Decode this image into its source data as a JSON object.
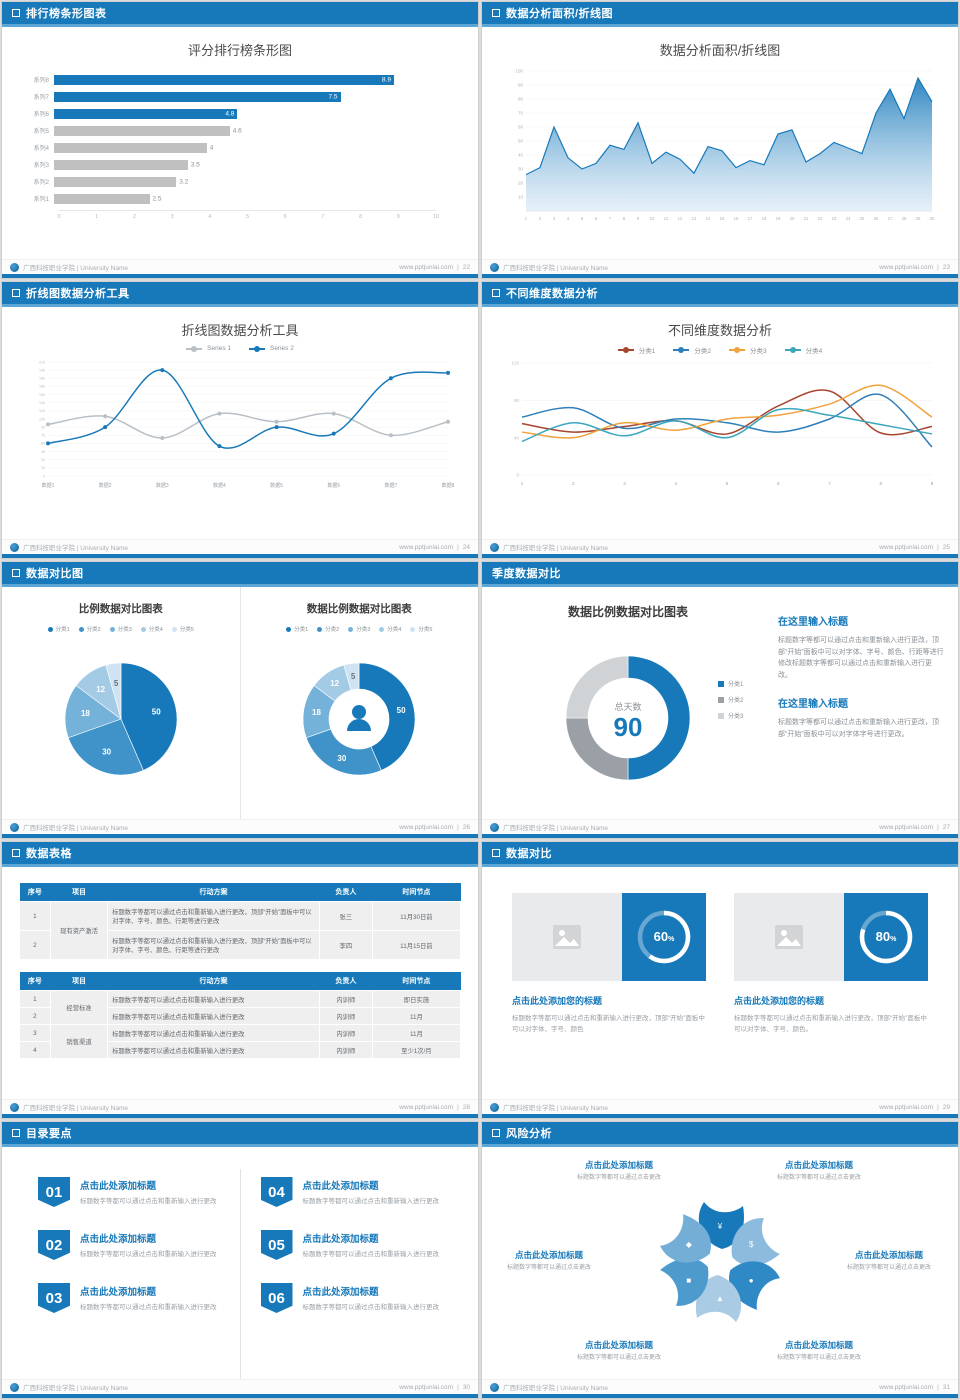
{
  "accent": "#1779ba",
  "footer": {
    "brand": "广西科技职业学院 | University Name",
    "site": "www.pptjunlai.com",
    "separator": "|"
  },
  "slides": {
    "s22": {
      "header": "排行榜条形图表",
      "page": "22",
      "title": "评分排行榜条形图",
      "chart": {
        "type": "bar",
        "orientation": "horizontal",
        "categories": [
          "系列8",
          "系列7",
          "系列6",
          "系列5",
          "系列4",
          "系列3",
          "系列2",
          "系列1"
        ],
        "values": [
          8.9,
          7.5,
          4.8,
          4.6,
          4,
          3.5,
          3.2,
          2.5
        ],
        "bar_colors": [
          "#1779ba",
          "#1779ba",
          "#1779ba",
          "#c0c0c0",
          "#c0c0c0",
          "#c0c0c0",
          "#c0c0c0",
          "#c0c0c0"
        ],
        "xlim": [
          0,
          10
        ],
        "xticks": [
          0,
          1,
          2,
          3,
          4,
          5,
          6,
          7,
          8,
          9,
          10
        ]
      }
    },
    "s23": {
      "header": "数据分析面积/折线图",
      "page": "23",
      "title": "数据分析面积/折线图",
      "chart": {
        "type": "area",
        "x": [
          1,
          2,
          3,
          4,
          5,
          6,
          7,
          8,
          9,
          10,
          11,
          12,
          13,
          14,
          15,
          16,
          17,
          18,
          19,
          20,
          21,
          22,
          23,
          24,
          25,
          26,
          27,
          28,
          29,
          30
        ],
        "values": [
          26,
          31,
          60,
          38,
          30,
          34,
          47,
          44,
          63,
          34,
          42,
          37,
          27,
          46,
          43,
          31,
          36,
          33,
          55,
          58,
          35,
          41,
          49,
          45,
          41,
          70,
          87,
          66,
          95,
          78
        ],
        "ylim": [
          0,
          100
        ],
        "yticks": [
          10,
          20,
          30,
          40,
          50,
          60,
          70,
          80,
          90,
          100
        ],
        "line_color": "#1779ba",
        "fill_to": "#cde2f3"
      }
    },
    "s24": {
      "header": "折线图数据分析工具",
      "page": "24",
      "title": "折线图数据分析工具",
      "chart": {
        "type": "line",
        "categories": [
          "数据1",
          "数据2",
          "数据3",
          "数据4",
          "数据5",
          "数据6",
          "数据7",
          "数据8"
        ],
        "ylim": [
          0,
          210
        ],
        "ytick_step": 15,
        "series": [
          {
            "name": "Series 1",
            "color": "#b9bfc6",
            "values": [
              95,
              110,
              70,
              115,
              100,
              115,
              75,
              100
            ]
          },
          {
            "name": "Series 2",
            "color": "#1779ba",
            "values": [
              60,
              90,
              195,
              55,
              90,
              78,
              180,
              190
            ]
          }
        ]
      }
    },
    "s25": {
      "header": "不同维度数据分析",
      "page": "25",
      "title": "不同维度数据分析",
      "chart": {
        "type": "line",
        "x": [
          1,
          2,
          3,
          4,
          5,
          6,
          7,
          8,
          9
        ],
        "ylim": [
          0,
          120
        ],
        "yticks": [
          0,
          40,
          80,
          120
        ],
        "series": [
          {
            "name": "分类1",
            "color": "#a8452f",
            "values": [
              55,
              46,
              52,
              58,
              44,
              74,
              90,
              45,
              52
            ]
          },
          {
            "name": "分类2",
            "color": "#2e7fb9",
            "values": [
              62,
              72,
              50,
              60,
              56,
              46,
              60,
              86,
              30
            ]
          },
          {
            "name": "分类3",
            "color": "#f0a23c",
            "values": [
              46,
              40,
              56,
              48,
              60,
              64,
              76,
              96,
              62
            ]
          },
          {
            "name": "分类4",
            "color": "#3aa7bd",
            "values": [
              36,
              56,
              42,
              58,
              40,
              70,
              64,
              54,
              44
            ]
          }
        ]
      }
    },
    "s26": {
      "header": "数据对比图",
      "page": "26",
      "left": {
        "title": "比例数据对比图表"
      },
      "right": {
        "title": "数据比例数据对比图表"
      },
      "legend": [
        "分类1",
        "分类2",
        "分类3",
        "分类4",
        "分类5"
      ],
      "chart": {
        "type": "pie",
        "values": [
          50,
          30,
          18,
          12,
          5
        ],
        "colors": [
          "#1779ba",
          "#3f93c9",
          "#74b2da",
          "#a3cbe6",
          "#cfe3f2"
        ]
      }
    },
    "s27": {
      "header": "季度数据对比",
      "page": "27",
      "title": "数据比例数据对比图表",
      "chart": {
        "type": "donut",
        "labels": [
          "分类1",
          "分类2",
          "分类3"
        ],
        "values": [
          50,
          25,
          25
        ],
        "colors": [
          "#1779ba",
          "#9aa0a5",
          "#cfd3d6"
        ],
        "center_label": "总天数",
        "center_value": "90"
      },
      "blocks": [
        {
          "title": "在这里输入标题",
          "body": "标题数字等都可以通过点击和重新输入进行更改，顶部“开始”面板中可以对字体、字号、颜色、行距等进行修改标题数字等都可以通过点击和重新输入进行更改。"
        },
        {
          "title": "在这里输入标题",
          "body": "标题数字等都可以通过点击和重新输入进行更改，顶部“开始”面板中可以对字体字号进行更改。"
        }
      ]
    },
    "s28": {
      "header": "数据表格",
      "page": "28",
      "table1": {
        "headers": [
          "序号",
          "项目",
          "行动方案",
          "负责人",
          "时间节点"
        ],
        "rows": [
          [
            {
              "t": "1"
            },
            {
              "t": "现有资产激活",
              "rs": 2
            },
            {
              "t": "标题数字等都可以通过点击和重新输入进行更改，顶部“开始”面板中可以对字体、字号、颜色、行距等进行更改"
            },
            {
              "t": "张三"
            },
            {
              "t": "11月30日前"
            }
          ],
          [
            {
              "t": "2"
            },
            {
              "t": "标题数字等都可以通过点击和重新输入进行更改，顶部“开始”面板中可以对字体、字号、颜色、行距等进行更改"
            },
            {
              "t": "李四"
            },
            {
              "t": "11月15日前"
            }
          ]
        ]
      },
      "table2": {
        "headers": [
          "序号",
          "项目",
          "行动方案",
          "负责人",
          "时间节点"
        ],
        "rows": [
          [
            {
              "t": "1"
            },
            {
              "t": "经营标准",
              "rs": 2
            },
            {
              "t": "标题数字等都可以通过点击和重新输入进行更改"
            },
            {
              "t": "内训师"
            },
            {
              "t": "即日实施"
            }
          ],
          [
            {
              "t": "2"
            },
            {
              "t": "标题数字等都可以通过点击和重新输入进行更改"
            },
            {
              "t": "内训师"
            },
            {
              "t": "11月"
            }
          ],
          [
            {
              "t": "3"
            },
            {
              "t": "销售渠道",
              "rs": 2
            },
            {
              "t": "标题数字等都可以通过点击和重新输入进行更改"
            },
            {
              "t": "内训师"
            },
            {
              "t": "11月"
            }
          ],
          [
            {
              "t": "4"
            },
            {
              "t": "标题数字等都可以通过点击和重新输入进行更改"
            },
            {
              "t": "内训师"
            },
            {
              "t": "至少1次/月"
            }
          ]
        ]
      }
    },
    "s29": {
      "header": "数据对比",
      "page": "29",
      "cards": [
        {
          "percent": 60,
          "title": "点击此处添加您的标题",
          "body": "标题数字等都可以通过点击和重新输入进行更改，顶部“开始”面板中可以对字体、字号、颜色"
        },
        {
          "percent": 80,
          "title": "点击此处添加您的标题",
          "body": "标题数字等都可以通过点击和重新输入进行更改，顶部“开始”面板中可以对字体、字号、颜色。"
        }
      ]
    },
    "s30": {
      "header": "目录要点",
      "page": "30",
      "items": [
        {
          "num": "01",
          "title": "点击此处添加标题",
          "body": "标题数字等都可以通过点击和重新输入进行更改"
        },
        {
          "num": "02",
          "title": "点击此处添加标题",
          "body": "标题数字等都可以通过点击和重新输入进行更改"
        },
        {
          "num": "03",
          "title": "点击此处添加标题",
          "body": "标题数字等都可以通过点击和重新输入进行更改"
        },
        {
          "num": "04",
          "title": "点击此处添加标题",
          "body": "标题数字等都可以通过点击和重新输入进行更改"
        },
        {
          "num": "05",
          "title": "点击此处添加标题",
          "body": "标题数字等都可以通过点击和重新输入进行更改"
        },
        {
          "num": "06",
          "title": "点击此处添加标题",
          "body": "标题数字等都可以通过点击和重新输入进行更改"
        }
      ]
    },
    "s31": {
      "header": "风险分析",
      "page": "31",
      "labels": [
        {
          "title": "点击此处添加标题",
          "body": "标题数字等都可以通过点击更改"
        },
        {
          "title": "点击此处添加标题",
          "body": "标题数字等都可以通过点击更改"
        },
        {
          "title": "点击此处添加标题",
          "body": "标题数字等都可以通过点击更改"
        },
        {
          "title": "点击此处添加标题",
          "body": "标题数字等都可以通过点击更改"
        },
        {
          "title": "点击此处添加标题",
          "body": "标题数字等都可以通过点击更改"
        },
        {
          "title": "点击此处添加标题",
          "body": "标题数字等都可以通过点击更改"
        }
      ],
      "icons": [
        {
          "glyph": "¥",
          "name": "money-bag-icon"
        },
        {
          "glyph": "$",
          "name": "coins-icon"
        },
        {
          "glyph": "●",
          "name": "people-icon"
        },
        {
          "glyph": "▲",
          "name": "growth-chart-icon"
        },
        {
          "glyph": "■",
          "name": "calculator-icon"
        },
        {
          "glyph": "◆",
          "name": "assets-icon"
        }
      ],
      "petal_colors": [
        "#1779ba",
        "#8cbbdd",
        "#2f89c5",
        "#a9cbe4",
        "#4d9bcd",
        "#74aed6"
      ]
    }
  }
}
